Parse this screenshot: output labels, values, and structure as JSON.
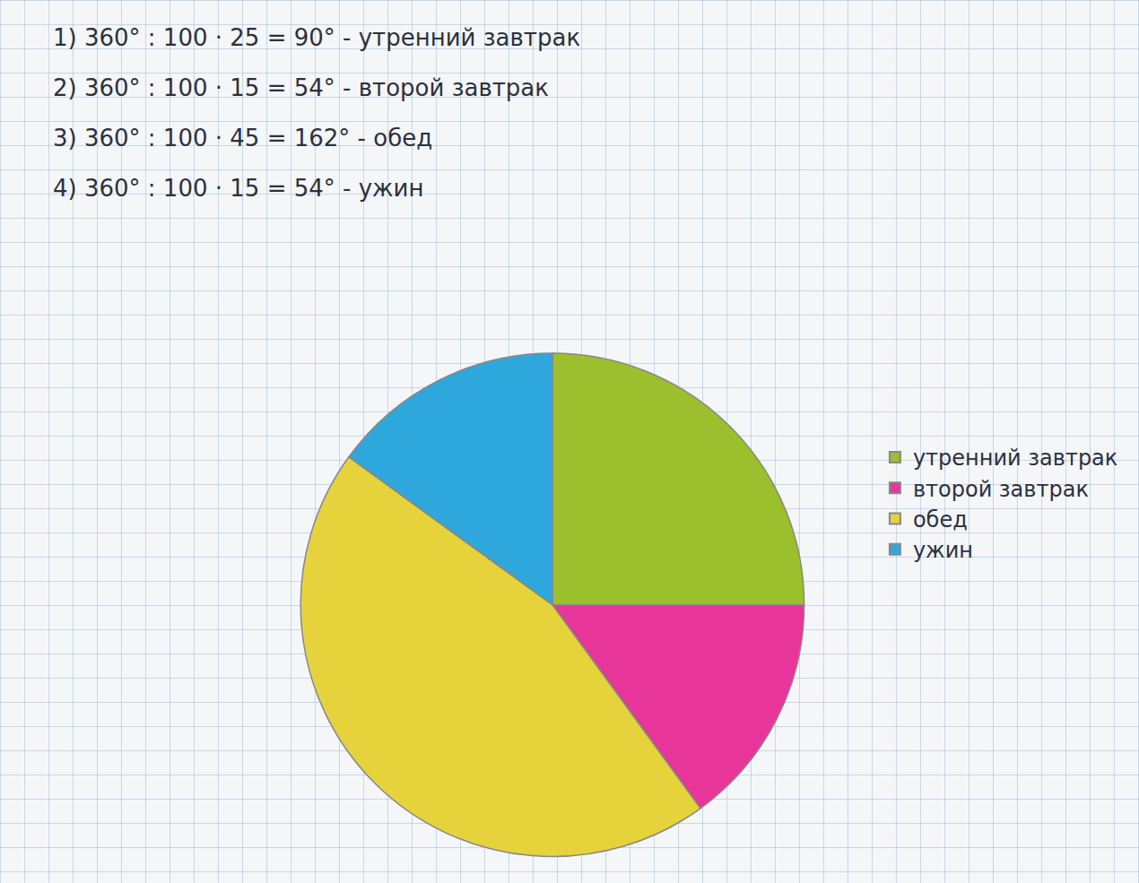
{
  "chart_data": {
    "type": "pie",
    "categories": [
      "утренний завтрак",
      "второй завтрак",
      "обед",
      "ужин"
    ],
    "values": [
      25,
      15,
      45,
      15
    ],
    "colors": [
      "#9cbf2e",
      "#e8359a",
      "#e6d33c",
      "#2ea8dc"
    ],
    "legend": "right",
    "annotations": [
      "1) 360° : 100 · 25 = 90° - утренний завтрак",
      "2) 360° : 100 · 15 = 54° - второй завтрак",
      "3) 360° : 100 · 45 = 162° - обед",
      "4) 360° : 100 · 15 = 54° - ужин"
    ]
  }
}
